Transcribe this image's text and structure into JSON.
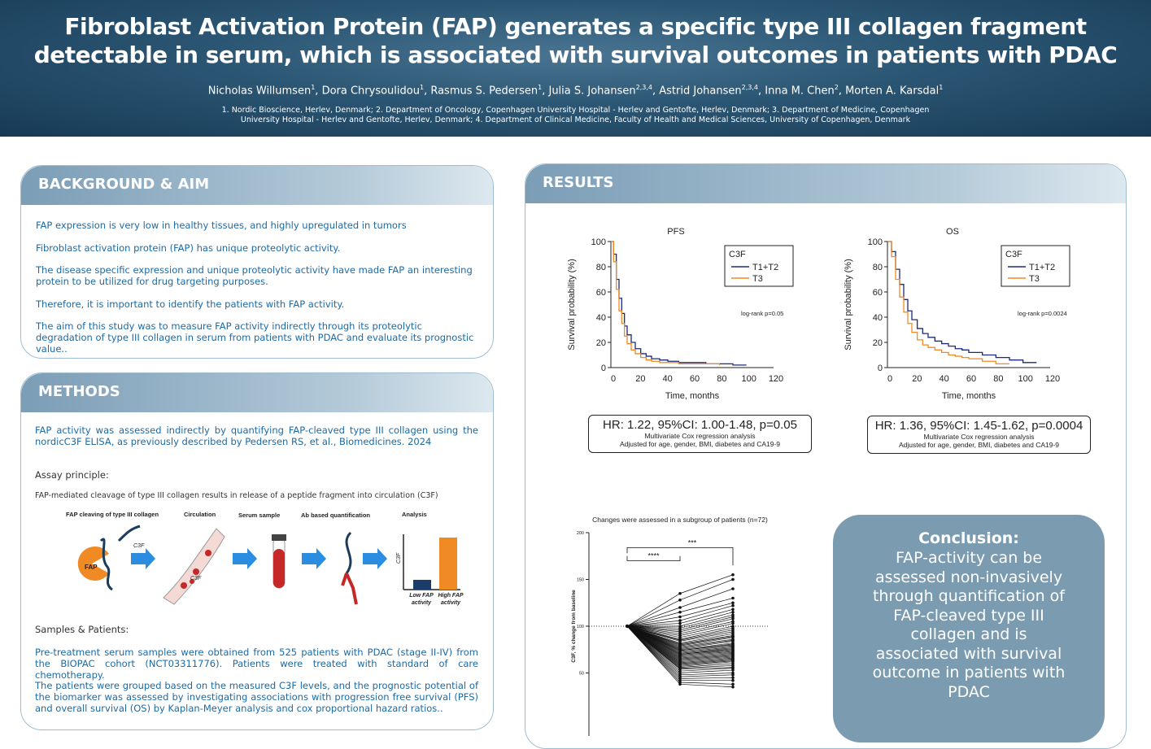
{
  "header": {
    "title_line1": "Fibroblast Activation Protein (FAP) generates a specific type III collagen fragment",
    "title_line2": "detectable in serum, which is associated with survival outcomes in patients with PDAC",
    "authors": [
      {
        "name": "Nicholas Willumsen",
        "sup": "1"
      },
      {
        "name": "Dora Chrysoulidou",
        "sup": "1"
      },
      {
        "name": "Rasmus S. Pedersen",
        "sup": "1"
      },
      {
        "name": "Julia S. Johansen",
        "sup": "2,3,4"
      },
      {
        "name": "Astrid Johansen",
        "sup": "2,3,4"
      },
      {
        "name": "Inna M. Chen",
        "sup": "2"
      },
      {
        "name": "Morten A. Karsdal",
        "sup": "1"
      }
    ],
    "affiliations": "1. Nordic Bioscience, Herlev, Denmark; 2. Department of Oncology, Copenhagen University Hospital - Herlev and Gentofte, Herlev, Denmark; 3. Department of Medicine, Copenhagen University Hospital - Herlev and Gentofte, Herlev, Denmark; 4. Department of Clinical Medicine, Faculty of Health and Medical Sciences, University of Copenhagen, Denmark"
  },
  "background": {
    "heading": "BACKGROUND & AIM",
    "paragraphs": [
      "FAP expression is very low in healthy tissues, and highly upregulated in tumors",
      "Fibroblast activation protein (FAP) has unique proteolytic activity.",
      "The disease specific expression and unique proteolytic activity have made FAP an interesting protein to be utilized for drug targeting purposes.",
      "Therefore, it is important to identify the patients with FAP activity.",
      "The aim of this study was to measure FAP activity indirectly through its proteolytic degradation of type III collagen in serum from patients with PDAC and evaluate its prognostic value.."
    ]
  },
  "methods": {
    "heading": "METHODS",
    "intro": "FAP activity was assessed indirectly by quantifying FAP-cleaved type III collagen using the nordicC3F ELISA, as previously described by Pedersen RS, et al., Biomedicines. 2024",
    "assay_label": "Assay principle:",
    "assay_desc": "FAP-mediated cleavage of type III collagen results in release of a peptide fragment into circulation (C3F)",
    "steps": [
      "FAP cleaving of type III collagen",
      "Circulation",
      "Serum sample",
      "Ab based quantification",
      "Analysis"
    ],
    "fig_labels": {
      "fap": "FAP",
      "c3f": "C3F",
      "ylabel": "C3F",
      "low": "Low FAP activity",
      "high": "High FAP activity"
    },
    "samples_label": "Samples & Patients:",
    "samples_p1": "Pre-treatment serum samples were obtained from 525 patients with PDAC (stage II-IV) from the BIOPAC cohort (NCT03311776). Patients were treated with standard of care chemotherapy.",
    "samples_p2": "The patients were grouped based on the measured C3F levels, and the prognostic potential of the biomarker was assessed by investigating associations with progression free survival (PFS) and overall survival (OS) by Kaplan-Meyer analysis and cox proportional hazard ratios.."
  },
  "results": {
    "heading": "RESULTS",
    "pfs": {
      "title": "PFS",
      "hr": "HR: 1.22, 95%CI: 1.00-1.48, p=0.05",
      "logrank": "log-rank p=0.05"
    },
    "os": {
      "title": "OS",
      "hr": "HR: 1.36, 95%CI: 1.45-1.62, p=0.0004",
      "logrank": "log-rank p=0.0024"
    },
    "hr_sub1": "Multivariate Cox regression analysis",
    "hr_sub2": "Adjusted for age, gender, BMI, diabetes and CA19-9",
    "km_ylabel": "Survival probability (%)",
    "km_xlabel": "Time, months",
    "legend_title": "C3F",
    "legend_items": [
      "T1+T2",
      "T3"
    ],
    "paired_title": "Changes were assessed in a subgroup of patients (n=72)",
    "paired_ylabel": "C3F, % change from baseline",
    "sig1": "****",
    "sig2": "***"
  },
  "conclusion": {
    "title": "Conclusion:",
    "body": "FAP-activity can be assessed non-invasively through quantification of FAP-cleaved type III collagen and is associated with survival outcome in patients with PDAC"
  },
  "chart_data": [
    {
      "type": "line",
      "title": "PFS",
      "xlabel": "Time, months",
      "ylabel": "Survival probability (%)",
      "xlim": [
        0,
        120
      ],
      "ylim": [
        0,
        100
      ],
      "xticks": [
        0,
        20,
        40,
        60,
        80,
        100,
        120
      ],
      "yticks": [
        0,
        20,
        40,
        60,
        80,
        100
      ],
      "legend_title": "C3F",
      "legend": "top-right",
      "series": [
        {
          "name": "T1+T2",
          "color": "#1f2a7a",
          "x": [
            0,
            2,
            4,
            6,
            8,
            10,
            12,
            15,
            18,
            22,
            26,
            30,
            36,
            42,
            50,
            60,
            70,
            80,
            90,
            100
          ],
          "y": [
            100,
            90,
            70,
            55,
            43,
            33,
            26,
            20,
            15,
            11,
            9,
            7,
            6,
            5,
            4,
            4,
            3,
            3,
            2,
            2
          ]
        },
        {
          "name": "T3",
          "color": "#f08a24",
          "x": [
            0,
            2,
            4,
            6,
            8,
            10,
            12,
            15,
            18,
            22,
            26,
            30,
            36,
            42,
            50,
            60,
            70,
            80
          ],
          "y": [
            100,
            84,
            62,
            45,
            35,
            25,
            19,
            14,
            11,
            8,
            6,
            5,
            4,
            4,
            3,
            3,
            3,
            2
          ]
        }
      ],
      "annotation": "log-rank p=0.05"
    },
    {
      "type": "line",
      "title": "OS",
      "xlabel": "Time, months",
      "ylabel": "Survival probability (%)",
      "xlim": [
        0,
        120
      ],
      "ylim": [
        0,
        100
      ],
      "xticks": [
        0,
        20,
        40,
        60,
        80,
        100,
        120
      ],
      "yticks": [
        0,
        20,
        40,
        60,
        80,
        100
      ],
      "legend_title": "C3F",
      "legend": "top-right",
      "series": [
        {
          "name": "T1+T2",
          "color": "#1f2a7a",
          "x": [
            0,
            3,
            6,
            9,
            12,
            15,
            18,
            22,
            26,
            30,
            35,
            40,
            45,
            50,
            55,
            60,
            70,
            80,
            90,
            100,
            110
          ],
          "y": [
            100,
            92,
            78,
            66,
            54,
            45,
            38,
            31,
            27,
            24,
            21,
            19,
            17,
            15,
            14,
            12,
            10,
            8,
            6,
            4,
            4
          ]
        },
        {
          "name": "T3",
          "color": "#f08a24",
          "x": [
            0,
            3,
            6,
            9,
            12,
            15,
            18,
            22,
            26,
            30,
            35,
            40,
            45,
            50,
            55,
            60,
            70,
            80,
            90
          ],
          "y": [
            100,
            88,
            70,
            56,
            44,
            35,
            28,
            22,
            18,
            16,
            14,
            12,
            10,
            9,
            8,
            7,
            5,
            3,
            3
          ]
        }
      ],
      "annotation": "log-rank p=0.0024"
    },
    {
      "type": "line",
      "title": "Changes were assessed in a subgroup of patients (n=72)",
      "ylabel": "C3F, % change from baseline",
      "ylim": [
        0,
        200
      ],
      "yticks": [
        50,
        100,
        150,
        200
      ],
      "timepoints": 3,
      "baseline": 100,
      "significance": [
        "****",
        "***"
      ],
      "patients_t2": [
        135,
        128,
        120,
        115,
        110,
        106,
        103,
        100,
        98,
        96,
        94,
        92,
        90,
        88,
        86,
        85,
        84,
        82,
        81,
        80,
        79,
        78,
        77,
        76,
        75,
        74,
        74,
        73,
        72,
        71,
        70,
        70,
        69,
        68,
        67,
        66,
        65,
        64,
        63,
        62,
        61,
        60,
        59,
        58,
        57,
        56,
        55,
        54,
        52,
        50,
        48,
        46,
        44,
        42,
        40,
        38
      ],
      "patients_t3": [
        155,
        150,
        140,
        130,
        125,
        122,
        118,
        115,
        112,
        110,
        108,
        105,
        103,
        100,
        98,
        96,
        94,
        92,
        90,
        89,
        88,
        86,
        85,
        84,
        82,
        81,
        80,
        79,
        78,
        77,
        76,
        75,
        74,
        73,
        72,
        71,
        70,
        69,
        68,
        67,
        66,
        65,
        64,
        63,
        62,
        60,
        58,
        56,
        55,
        53,
        50,
        48,
        45,
        42,
        38,
        35
      ]
    }
  ]
}
